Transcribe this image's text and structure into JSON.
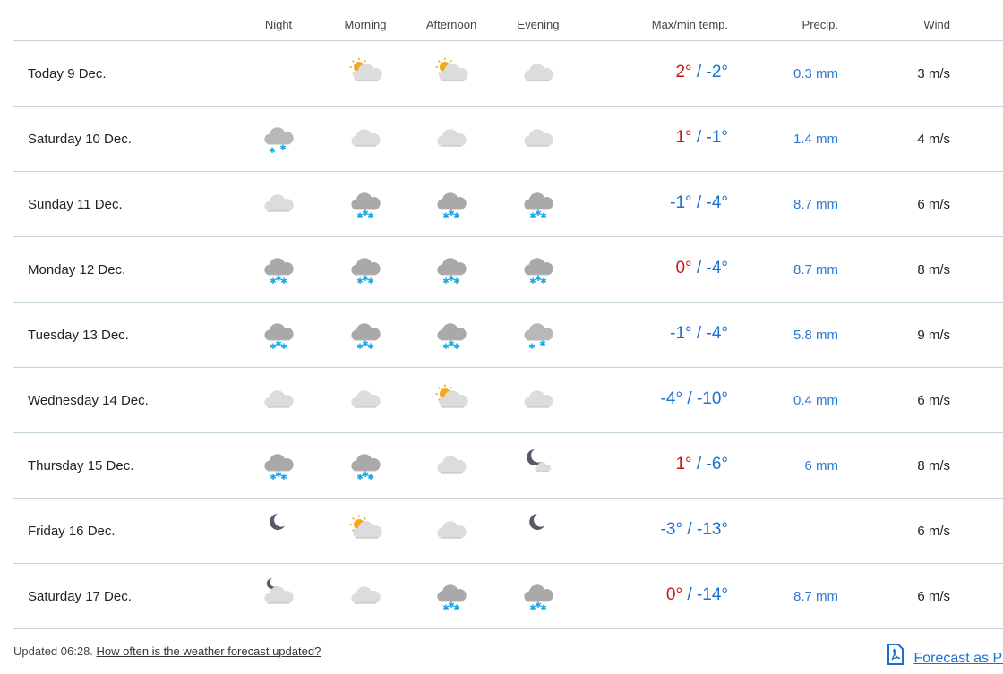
{
  "columns": {
    "night": "Night",
    "morning": "Morning",
    "afternoon": "Afternoon",
    "evening": "Evening",
    "temp": "Max/min temp.",
    "precip": "Precip.",
    "wind": "Wind"
  },
  "colors": {
    "warm": "#c8161d",
    "cold": "#1b6fd1",
    "precip": "#2a7ad6"
  },
  "rows": [
    {
      "day": "Today 9 Dec.",
      "icons": [
        "",
        "partly-sunny",
        "partly-sunny",
        "cloud"
      ],
      "max": "2°",
      "min": "-2°",
      "precip": "0.3 mm",
      "wind": "3 m/s"
    },
    {
      "day": "Saturday 10 Dec.",
      "icons": [
        "light-snow",
        "cloud",
        "cloud",
        "cloud"
      ],
      "max": "1°",
      "min": "-1°",
      "precip": "1.4 mm",
      "wind": "4 m/s"
    },
    {
      "day": "Sunday 11 Dec.",
      "icons": [
        "cloud",
        "snow",
        "snow",
        "snow"
      ],
      "max": "-1°",
      "min": "-4°",
      "precip": "8.7 mm",
      "wind": "6 m/s"
    },
    {
      "day": "Monday 12 Dec.",
      "icons": [
        "snow",
        "snow",
        "snow",
        "snow"
      ],
      "max": "0°",
      "min": "-4°",
      "precip": "8.7 mm",
      "wind": "8 m/s"
    },
    {
      "day": "Tuesday 13 Dec.",
      "icons": [
        "snow",
        "snow",
        "snow",
        "light-snow"
      ],
      "max": "-1°",
      "min": "-4°",
      "precip": "5.8 mm",
      "wind": "9 m/s"
    },
    {
      "day": "Wednesday 14 Dec.",
      "icons": [
        "cloud",
        "cloud",
        "partly-sunny",
        "cloud"
      ],
      "max": "-4°",
      "min": "-10°",
      "precip": "0.4 mm",
      "wind": "6 m/s"
    },
    {
      "day": "Thursday 15 Dec.",
      "icons": [
        "snow",
        "snow",
        "cloud",
        "moon-cloud"
      ],
      "max": "1°",
      "min": "-6°",
      "precip": "6 mm",
      "wind": "8 m/s"
    },
    {
      "day": "Friday 16 Dec.",
      "icons": [
        "moon",
        "partly-sunny",
        "cloud",
        "moon"
      ],
      "max": "-3°",
      "min": "-13°",
      "precip": "",
      "wind": "6 m/s"
    },
    {
      "day": "Saturday 17 Dec.",
      "icons": [
        "cloud-moon",
        "cloud",
        "snow",
        "snow"
      ],
      "max": "0°",
      "min": "-14°",
      "precip": "8.7 mm",
      "wind": "6 m/s"
    }
  ],
  "footer": {
    "updated": "Updated 06:28.",
    "help_link": "How often is the weather forecast updated?",
    "pdf_link": "Forecast as PDF"
  }
}
